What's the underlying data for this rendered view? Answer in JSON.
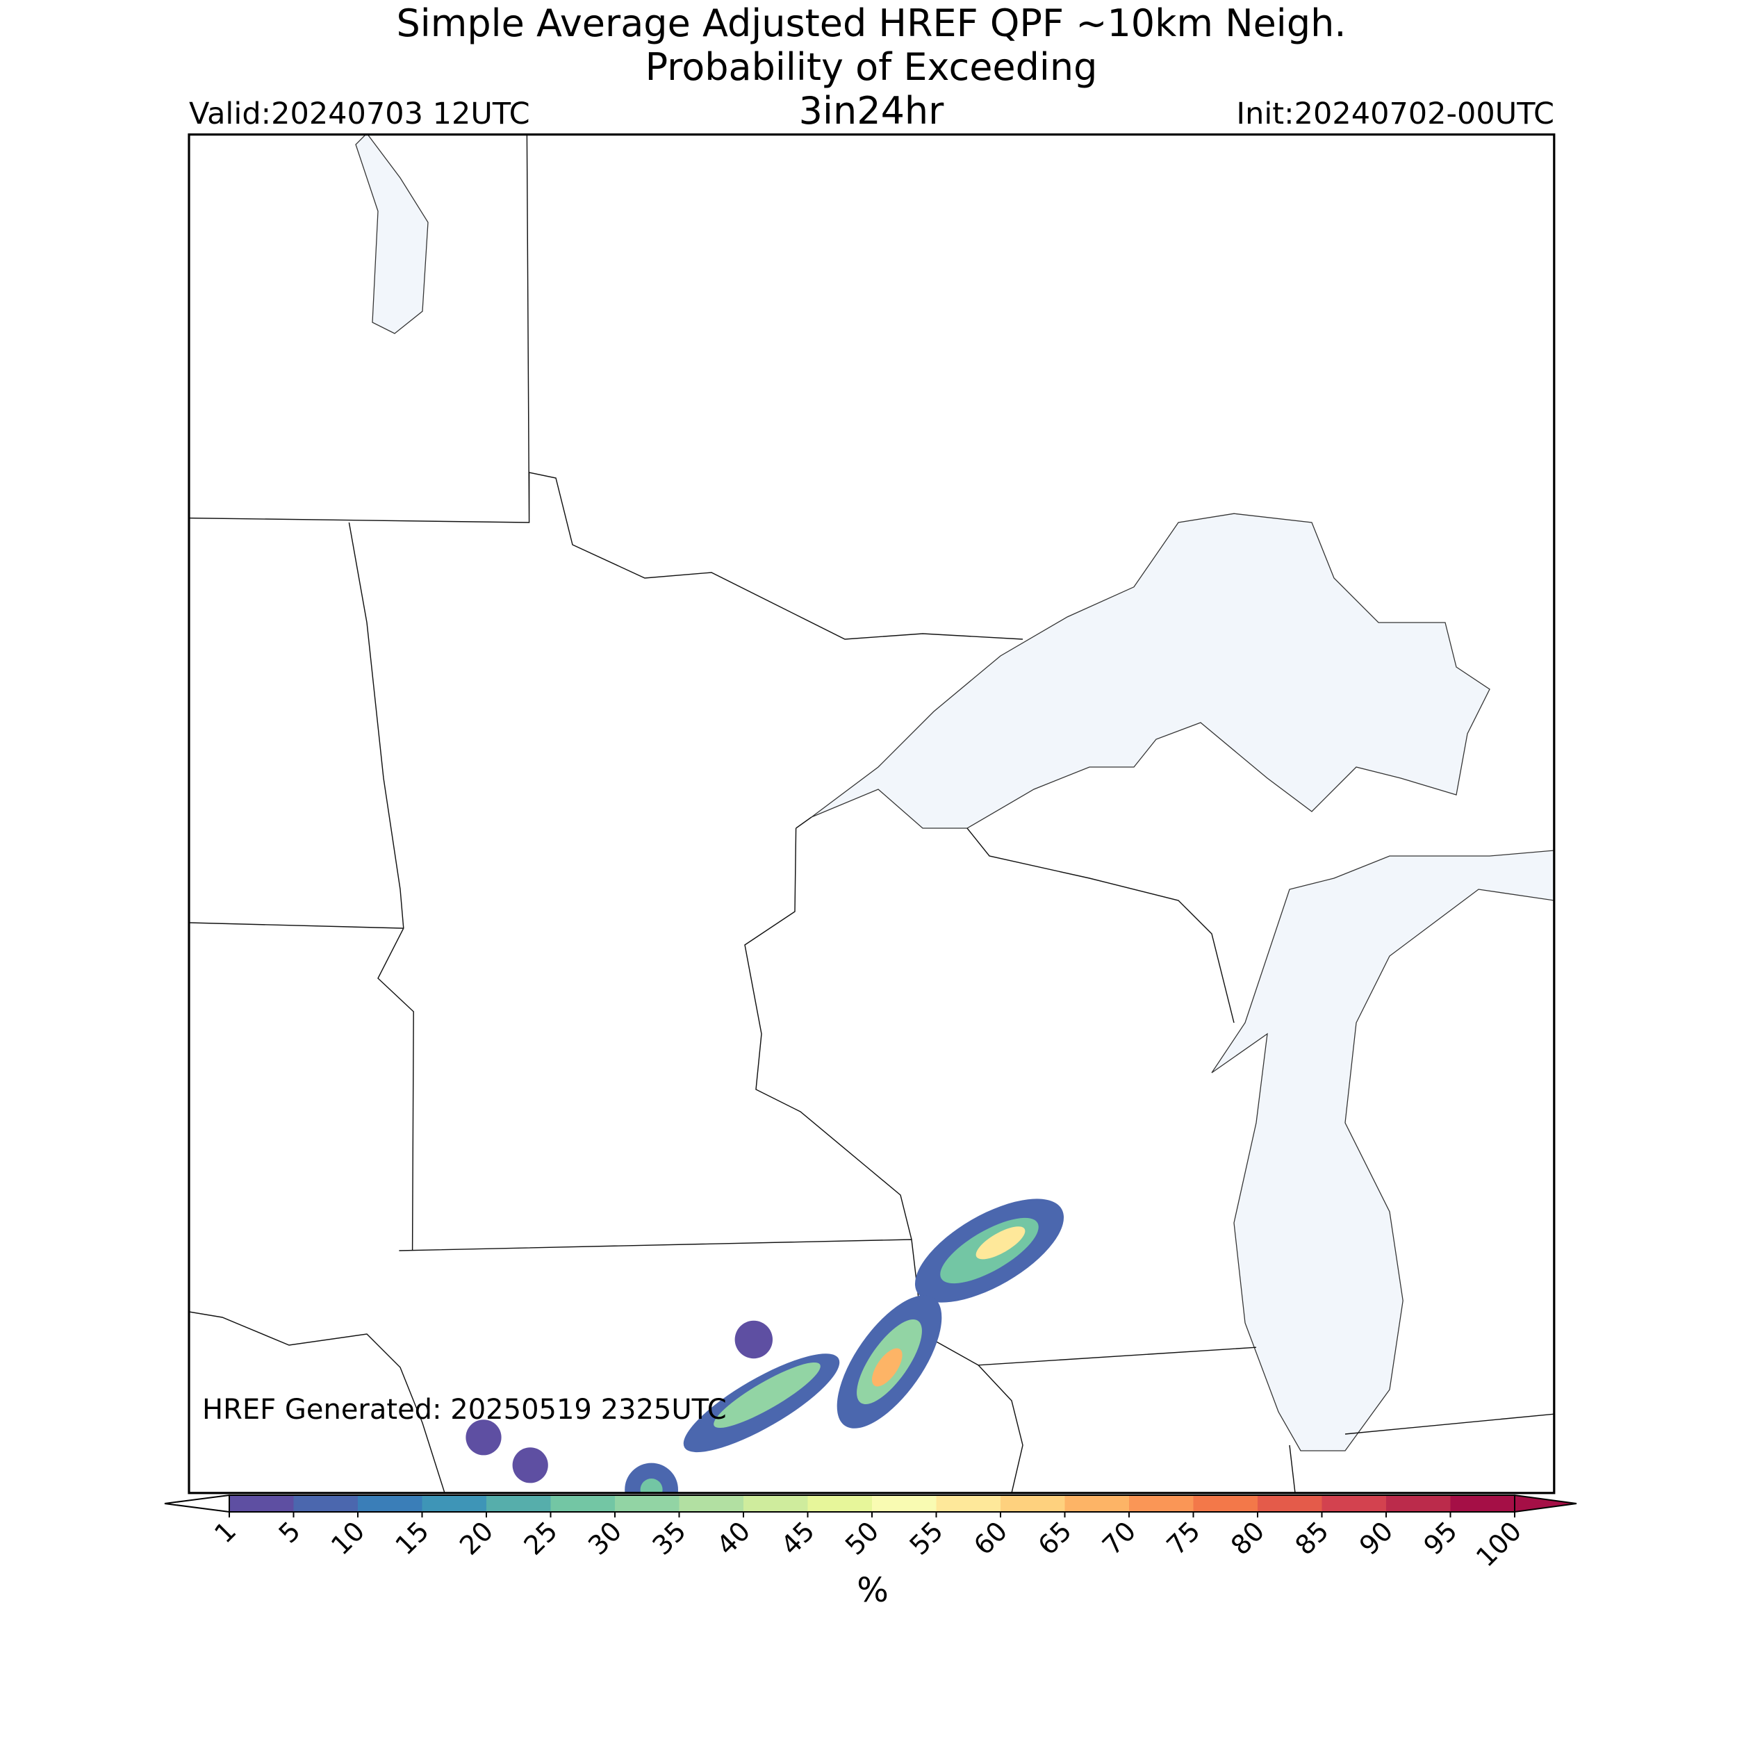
{
  "title": "Simple Average Adjusted HREF QPF ~10km Neigh.",
  "subtitle": "Probability of Exceeding",
  "threshold": "3in24hr",
  "valid": "Valid:20240703 12UTC",
  "init": "Init:20240702-00UTC",
  "generated": "HREF Generated: 20250519 2325UTC",
  "colorbar": {
    "label": "%",
    "ticks": [
      1,
      5,
      10,
      15,
      20,
      25,
      30,
      35,
      40,
      45,
      50,
      55,
      60,
      65,
      70,
      75,
      80,
      85,
      90,
      95,
      100
    ],
    "colors": [
      "#5e4fa2",
      "#4b67ae",
      "#3a7eb8",
      "#3e95b7",
      "#56aeab",
      "#73c6a4",
      "#92d4a4",
      "#b2e0a2",
      "#cfec9d",
      "#e7f69a",
      "#f9fbb2",
      "#fee89a",
      "#fed17e",
      "#fdb466",
      "#fa9656",
      "#f37849",
      "#e45b4a",
      "#d3424f",
      "#bb2b4b",
      "#a50f46"
    ]
  }
}
